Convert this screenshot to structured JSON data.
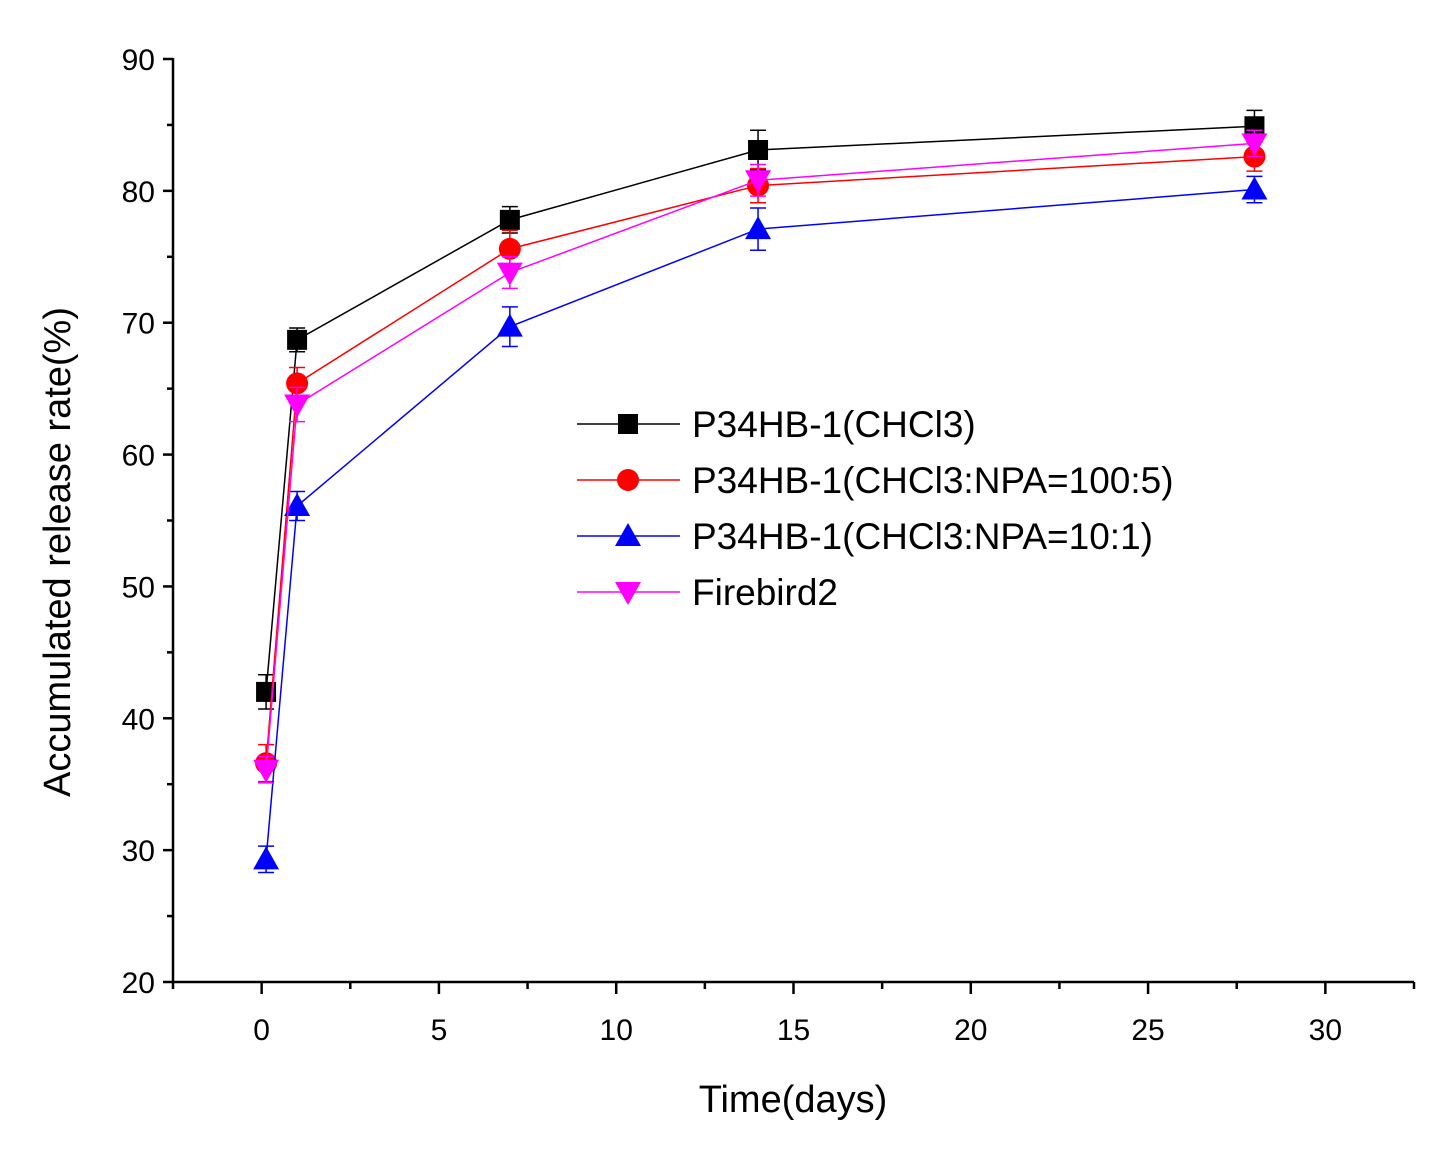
{
  "chart_data": {
    "type": "line",
    "title": "",
    "xlabel": "Time(days)",
    "ylabel": "Accumulated release rate(%)",
    "xlim": [
      -2.5,
      32.5
    ],
    "ylim": [
      20,
      90
    ],
    "xticks": [
      0,
      5,
      10,
      15,
      20,
      25,
      30
    ],
    "yticks": [
      20,
      30,
      40,
      50,
      60,
      70,
      80,
      90
    ],
    "grid": false,
    "legend_position": "center-right",
    "x": [
      0.125,
      1,
      7,
      14,
      28
    ],
    "series": [
      {
        "name": "P34HB-1(CHCl3)",
        "color": "#000000",
        "marker": "square",
        "values": [
          42.0,
          68.7,
          77.8,
          83.1,
          84.9
        ],
        "errors": [
          1.3,
          0.9,
          1.0,
          1.5,
          1.2
        ]
      },
      {
        "name": "P34HB-1(CHCl3:NPA=100:5)",
        "color": "#ff0000",
        "marker": "circle",
        "values": [
          36.6,
          65.4,
          75.6,
          80.4,
          82.6
        ],
        "errors": [
          1.4,
          1.2,
          1.4,
          1.3,
          1.1
        ]
      },
      {
        "name": "P34HB-1(CHCl3:NPA=10:1)",
        "color": "#0000ff",
        "marker": "triangle-up",
        "values": [
          29.3,
          56.1,
          69.7,
          77.1,
          80.1
        ],
        "errors": [
          1.0,
          1.1,
          1.5,
          1.6,
          1.0
        ]
      },
      {
        "name": "Firebird2",
        "color": "#ff00ff",
        "marker": "triangle-down",
        "values": [
          36.1,
          63.8,
          73.8,
          80.8,
          83.6
        ],
        "errors": [
          1.0,
          1.3,
          1.2,
          1.2,
          1.0
        ]
      }
    ]
  }
}
